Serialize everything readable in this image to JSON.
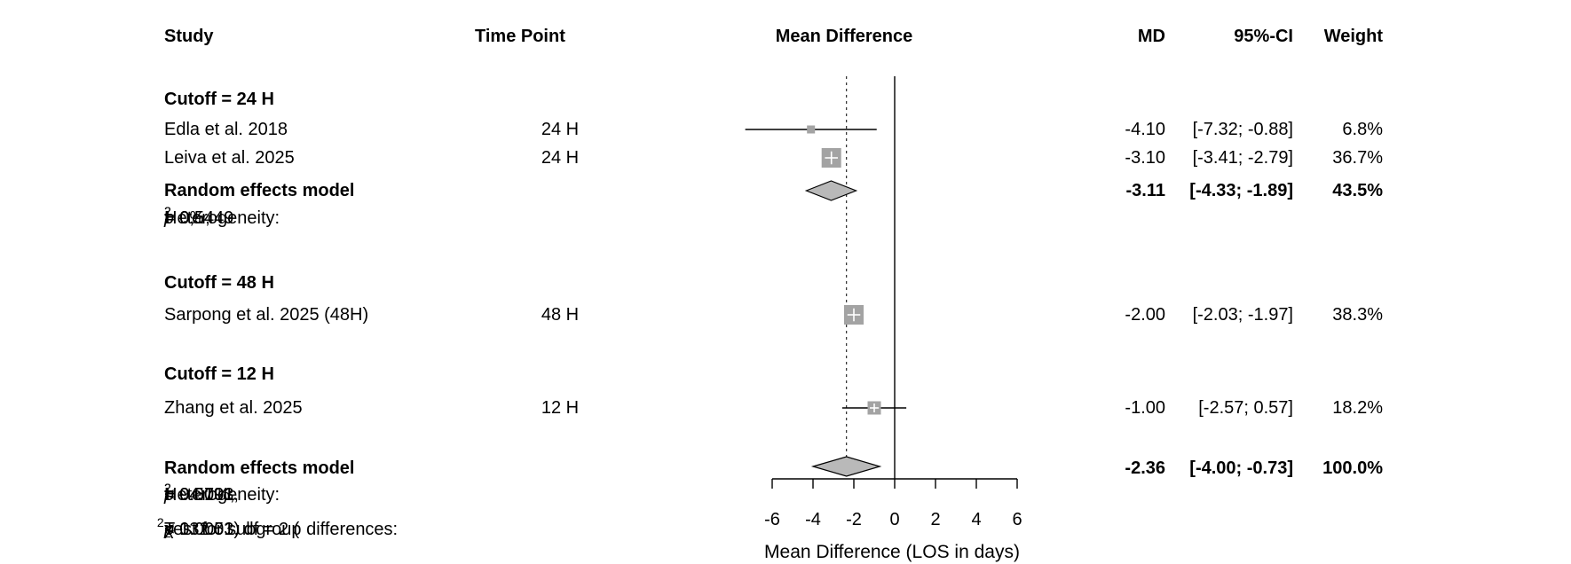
{
  "header": {
    "study": "Study",
    "time_point": "Time Point",
    "mean_difference": "Mean Difference",
    "md": "MD",
    "ci": "95%-CI",
    "weight": "Weight"
  },
  "groups": [
    {
      "label": "Cutoff = 24 H",
      "studies": [
        {
          "name": "Edla et al. 2018",
          "time": "24 H",
          "md": "-4.10",
          "ci": "[-7.32; -0.88]",
          "weight": "6.8%"
        },
        {
          "name": "Leiva et al. 2025",
          "time": "24 H",
          "md": "-3.10",
          "ci": "[-3.41; -2.79]",
          "weight": "36.7%"
        }
      ],
      "pooled": {
        "label": "Random effects model",
        "md": "-3.11",
        "ci": "[-4.33; -1.89]",
        "weight": "43.5%"
      },
      "heterogeneity": [
        {
          "t": "Heterogeneity: "
        },
        {
          "t": "I",
          "s": "i"
        },
        {
          "t": "2",
          "s": "sup"
        },
        {
          "t": " = 0%, "
        },
        {
          "t": "τ"
        },
        {
          "t": "2",
          "s": "sup"
        },
        {
          "t": " = 0, "
        },
        {
          "t": "p",
          "s": "i"
        },
        {
          "t": " = 0.5449"
        }
      ]
    },
    {
      "label": "Cutoff = 48 H",
      "studies": [
        {
          "name": "Sarpong et al. 2025 (48H)",
          "time": "48 H",
          "md": "-2.00",
          "ci": "[-2.03; -1.97]",
          "weight": "38.3%"
        }
      ]
    },
    {
      "label": "Cutoff = 12 H",
      "studies": [
        {
          "name": "Zhang et al. 2025",
          "time": "12 H",
          "md": "-1.00",
          "ci": "[-2.57;  0.57]",
          "weight": "18.2%"
        }
      ]
    }
  ],
  "overall": {
    "label": "Random effects model",
    "md": "-2.36",
    "ci": "[-4.00; -0.73]",
    "weight": "100.0%",
    "heterogeneity": [
      {
        "t": "Heterogeneity: "
      },
      {
        "t": "I",
        "s": "i"
      },
      {
        "t": "2",
        "s": "sup"
      },
      {
        "t": " = 94.1%, "
      },
      {
        "t": "τ"
      },
      {
        "t": "2",
        "s": "sup"
      },
      {
        "t": " = 0.5793, "
      },
      {
        "t": "p",
        "s": "i"
      },
      {
        "t": " < 0.0001"
      }
    ],
    "subgroup_test": [
      {
        "t": "Test for subgroup differences: "
      },
      {
        "t": "χ"
      },
      {
        "t": "2",
        "s": "sub"
      },
      {
        "t": "2",
        "s": "sup2"
      },
      {
        "t": " = 132.53, df = 2 ("
      },
      {
        "t": "p",
        "s": "i"
      },
      {
        "t": " < 0.0001)"
      }
    ]
  },
  "axis": {
    "label": "Mean Difference (LOS in days)"
  },
  "chart_data": {
    "type": "forest",
    "x_axis": {
      "label": "Mean Difference (LOS in days)",
      "ticks": [
        -6,
        -4,
        -2,
        0,
        2,
        4,
        6
      ],
      "range": [
        -6,
        6
      ]
    },
    "zero_line": 0,
    "overall_line": -2.36,
    "studies": [
      {
        "group": "Cutoff = 24 H",
        "name": "Edla et al. 2018",
        "time_point": "24 H",
        "md": -4.1,
        "ci_low": -7.32,
        "ci_high": -0.88,
        "weight_pct": 6.8
      },
      {
        "group": "Cutoff = 24 H",
        "name": "Leiva et al. 2025",
        "time_point": "24 H",
        "md": -3.1,
        "ci_low": -3.41,
        "ci_high": -2.79,
        "weight_pct": 36.7
      },
      {
        "group": "Cutoff = 48 H",
        "name": "Sarpong et al. 2025 (48H)",
        "time_point": "48 H",
        "md": -2.0,
        "ci_low": -2.03,
        "ci_high": -1.97,
        "weight_pct": 38.3
      },
      {
        "group": "Cutoff = 12 H",
        "name": "Zhang et al. 2025",
        "time_point": "12 H",
        "md": -1.0,
        "ci_low": -2.57,
        "ci_high": 0.57,
        "weight_pct": 18.2
      }
    ],
    "pooled": [
      {
        "scope": "Cutoff = 24 H subgroup",
        "model": "Random effects model",
        "md": -3.11,
        "ci_low": -4.33,
        "ci_high": -1.89,
        "weight_pct": 43.5
      },
      {
        "scope": "overall",
        "model": "Random effects model",
        "md": -2.36,
        "ci_low": -4.0,
        "ci_high": -0.73,
        "weight_pct": 100.0
      }
    ],
    "heterogeneity": {
      "subgroup_24h": {
        "I2_pct": 0,
        "tau2": 0,
        "p": 0.5449
      },
      "overall": {
        "I2_pct": 94.1,
        "tau2": 0.5793,
        "p": "< 0.0001"
      },
      "subgroup_test": {
        "chi2_df2": 132.53,
        "df": 2,
        "p": "< 0.0001"
      }
    },
    "colors": {
      "square": "#a3a3a3",
      "diamond": "#b9b9b9",
      "line": "#000000",
      "background": "#ffffff"
    }
  }
}
